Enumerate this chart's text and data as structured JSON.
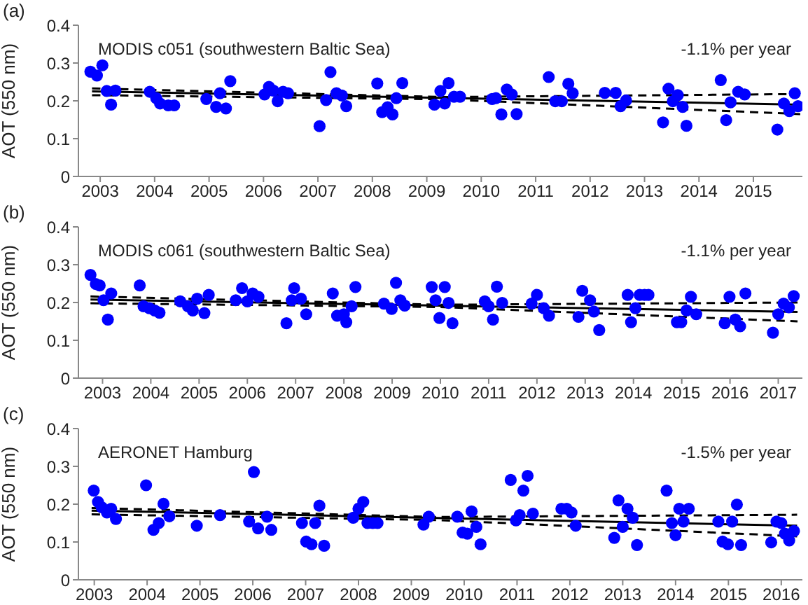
{
  "chart_data": [
    {
      "type": "scatter",
      "title": "(a)",
      "ylabel": "AOT (550 nm)",
      "annotations": [
        "MODIS c051 (southwestern Baltic Sea)",
        "-1.1% per year"
      ],
      "xlim": [
        2002.6,
        2015.9
      ],
      "xticks": [
        2003,
        2004,
        2005,
        2006,
        2007,
        2008,
        2009,
        2010,
        2011,
        2012,
        2013,
        2014,
        2015
      ],
      "ylim": [
        0,
        0.4
      ],
      "yticks": [
        0,
        0.1,
        0.2,
        0.3,
        0.4
      ],
      "grid": false,
      "legend": false,
      "marker": "circle",
      "series": [
        {
          "color": "#0000ff",
          "x": [
            2002.82,
            2002.94,
            2003.04,
            2003.12,
            2003.2,
            2003.28,
            2003.91,
            2004.03,
            2004.1,
            2004.25,
            2004.36,
            2004.95,
            2005.13,
            2005.2,
            2005.31,
            2005.39,
            2006.02,
            2006.1,
            2006.18,
            2006.26,
            2006.36,
            2006.45,
            2007.03,
            2007.15,
            2007.23,
            2007.34,
            2007.44,
            2007.52,
            2008.09,
            2008.18,
            2008.28,
            2008.37,
            2008.44,
            2008.55,
            2009.14,
            2009.25,
            2009.33,
            2009.4,
            2009.5,
            2009.61,
            2010.2,
            2010.27,
            2010.37,
            2010.47,
            2010.56,
            2010.65,
            2011.24,
            2011.36,
            2011.48,
            2011.6,
            2011.68,
            2012.27,
            2012.47,
            2012.56,
            2012.66,
            2013.34,
            2013.44,
            2013.52,
            2013.61,
            2013.7,
            2013.77,
            2014.4,
            2014.5,
            2014.58,
            2014.72,
            2014.84,
            2015.44,
            2015.56,
            2015.66,
            2015.76,
            2015.82
          ],
          "values": [
            0.277,
            0.267,
            0.294,
            0.226,
            0.19,
            0.227,
            0.224,
            0.207,
            0.193,
            0.188,
            0.188,
            0.205,
            0.184,
            0.22,
            0.18,
            0.252,
            0.217,
            0.237,
            0.227,
            0.199,
            0.224,
            0.22,
            0.133,
            0.202,
            0.276,
            0.22,
            0.214,
            0.186,
            0.246,
            0.17,
            0.183,
            0.164,
            0.207,
            0.247,
            0.19,
            0.226,
            0.193,
            0.247,
            0.211,
            0.211,
            0.205,
            0.207,
            0.164,
            0.23,
            0.217,
            0.165,
            0.263,
            0.199,
            0.199,
            0.245,
            0.22,
            0.221,
            0.221,
            0.186,
            0.201,
            0.143,
            0.232,
            0.199,
            0.215,
            0.184,
            0.134,
            0.255,
            0.149,
            0.196,
            0.224,
            0.217,
            0.124,
            0.193,
            0.173,
            0.22,
            0.186
          ]
        },
        {
          "type": "line",
          "color": "#000000",
          "line_style": "solid",
          "marker": "none",
          "x": [
            2002.85,
            2015.86
          ],
          "values": [
            0.225,
            0.19
          ]
        },
        {
          "type": "line",
          "color": "#000000",
          "line_style": "dashed",
          "marker": "none",
          "x": [
            2002.85,
            2009.3,
            2015.86
          ],
          "values": [
            0.233,
            0.21,
            0.218
          ]
        },
        {
          "type": "line",
          "color": "#000000",
          "line_style": "dashed",
          "marker": "none",
          "x": [
            2002.85,
            2009.3,
            2015.86
          ],
          "values": [
            0.215,
            0.204,
            0.165
          ]
        }
      ]
    },
    {
      "type": "scatter",
      "title": "(b)",
      "ylabel": "AOT (550 nm)",
      "annotations": [
        "MODIS c061 (southwestern Baltic Sea)",
        "-1.1% per year"
      ],
      "xlim": [
        2002.5,
        2017.5
      ],
      "xticks": [
        2003,
        2004,
        2005,
        2006,
        2007,
        2008,
        2009,
        2010,
        2011,
        2012,
        2013,
        2014,
        2015,
        2016,
        2017
      ],
      "ylim": [
        0,
        0.4
      ],
      "yticks": [
        0,
        0.1,
        0.2,
        0.3,
        0.4
      ],
      "grid": false,
      "legend": false,
      "marker": "circle",
      "series": [
        {
          "color": "#0000ff",
          "x": [
            2002.75,
            2002.86,
            2002.94,
            2003.02,
            2003.11,
            2003.18,
            2003.77,
            2003.85,
            2003.97,
            2004.08,
            2004.18,
            2004.61,
            2004.77,
            2004.87,
            2004.96,
            2005.11,
            2005.2,
            2005.76,
            2005.89,
            2006.0,
            2006.11,
            2006.23,
            2006.81,
            2006.92,
            2006.97,
            2007.11,
            2007.22,
            2007.77,
            2007.86,
            2008.0,
            2008.05,
            2008.16,
            2008.24,
            2008.83,
            2008.99,
            2009.08,
            2009.17,
            2009.26,
            2009.82,
            2009.9,
            2009.98,
            2010.09,
            2010.17,
            2010.25,
            2010.92,
            2011.0,
            2011.09,
            2011.17,
            2011.28,
            2011.89,
            2012.0,
            2012.14,
            2012.25,
            2012.86,
            2012.94,
            2013.1,
            2013.18,
            2013.29,
            2013.88,
            2013.95,
            2014.04,
            2014.13,
            2014.23,
            2014.31,
            2014.9,
            2014.99,
            2015.1,
            2015.19,
            2015.3,
            2015.89,
            2015.99,
            2016.11,
            2016.21,
            2016.32,
            2016.89,
            2017.0,
            2017.11,
            2017.22,
            2017.32
          ],
          "values": [
            0.273,
            0.249,
            0.245,
            0.206,
            0.155,
            0.224,
            0.245,
            0.19,
            0.185,
            0.179,
            0.173,
            0.203,
            0.19,
            0.179,
            0.21,
            0.172,
            0.22,
            0.206,
            0.238,
            0.203,
            0.224,
            0.215,
            0.145,
            0.206,
            0.238,
            0.21,
            0.169,
            0.224,
            0.165,
            0.169,
            0.148,
            0.19,
            0.241,
            0.197,
            0.183,
            0.252,
            0.206,
            0.192,
            0.241,
            0.206,
            0.159,
            0.241,
            0.199,
            0.145,
            0.203,
            0.19,
            0.155,
            0.242,
            0.199,
            0.197,
            0.22,
            0.185,
            0.165,
            0.162,
            0.231,
            0.206,
            0.176,
            0.127,
            0.22,
            0.148,
            0.185,
            0.22,
            0.22,
            0.22,
            0.148,
            0.148,
            0.179,
            0.215,
            0.169,
            0.145,
            0.215,
            0.155,
            0.137,
            0.224,
            0.12,
            0.169,
            0.197,
            0.187,
            0.217
          ]
        },
        {
          "type": "line",
          "color": "#000000",
          "line_style": "solid",
          "marker": "none",
          "x": [
            2002.75,
            2017.4
          ],
          "values": [
            0.208,
            0.175
          ]
        },
        {
          "type": "line",
          "color": "#000000",
          "line_style": "dashed",
          "marker": "none",
          "x": [
            2002.75,
            2010,
            2017.4
          ],
          "values": [
            0.216,
            0.194,
            0.2
          ]
        },
        {
          "type": "line",
          "color": "#000000",
          "line_style": "dashed",
          "marker": "none",
          "x": [
            2002.75,
            2010,
            2017.4
          ],
          "values": [
            0.198,
            0.188,
            0.15
          ]
        }
      ]
    },
    {
      "type": "scatter",
      "title": "(c)",
      "ylabel": "AOT (550 nm)",
      "annotations": [
        "AERONET Hamburg",
        "-1.5% per year"
      ],
      "xlim": [
        2002.7,
        2016.4
      ],
      "xticks": [
        2003,
        2004,
        2005,
        2006,
        2007,
        2008,
        2009,
        2010,
        2011,
        2012,
        2013,
        2014,
        2015,
        2016
      ],
      "ylim": [
        0,
        0.4
      ],
      "yticks": [
        0,
        0.1,
        0.2,
        0.3,
        0.4
      ],
      "grid": false,
      "legend": false,
      "marker": "circle",
      "series": [
        {
          "color": "#0000ff",
          "x": [
            2002.99,
            2003.07,
            2003.14,
            2003.24,
            2003.32,
            2003.41,
            2003.98,
            2004.12,
            2004.22,
            2004.31,
            2004.42,
            2004.94,
            2005.38,
            2005.93,
            2006.02,
            2006.1,
            2006.27,
            2006.35,
            2006.93,
            2007.01,
            2007.11,
            2007.18,
            2007.26,
            2007.35,
            2007.9,
            2008.0,
            2008.09,
            2008.17,
            2008.27,
            2008.36,
            2009.23,
            2009.33,
            2009.87,
            2009.97,
            2010.06,
            2010.14,
            2010.23,
            2010.31,
            2010.88,
            2010.98,
            2011.05,
            2011.12,
            2011.2,
            2011.3,
            2011.84,
            2011.94,
            2012.03,
            2012.11,
            2012.84,
            2012.92,
            2013.0,
            2013.09,
            2013.19,
            2013.27,
            2013.83,
            2013.93,
            2014.0,
            2014.07,
            2014.15,
            2014.25,
            2014.81,
            2014.89,
            2014.99,
            2015.07,
            2015.16,
            2015.24,
            2015.81,
            2015.91,
            2016.0,
            2016.07,
            2016.15,
            2016.24
          ],
          "values": [
            0.236,
            0.206,
            0.192,
            0.178,
            0.188,
            0.161,
            0.25,
            0.132,
            0.15,
            0.201,
            0.168,
            0.143,
            0.171,
            0.154,
            0.285,
            0.136,
            0.167,
            0.132,
            0.15,
            0.101,
            0.094,
            0.15,
            0.196,
            0.09,
            0.164,
            0.188,
            0.206,
            0.15,
            0.15,
            0.15,
            0.146,
            0.167,
            0.167,
            0.125,
            0.122,
            0.181,
            0.14,
            0.094,
            0.264,
            0.157,
            0.171,
            0.236,
            0.275,
            0.175,
            0.188,
            0.188,
            0.178,
            0.143,
            0.111,
            0.21,
            0.14,
            0.188,
            0.164,
            0.092,
            0.236,
            0.15,
            0.118,
            0.188,
            0.154,
            0.188,
            0.154,
            0.101,
            0.094,
            0.154,
            0.199,
            0.092,
            0.099,
            0.154,
            0.15,
            0.122,
            0.104,
            0.129
          ]
        },
        {
          "type": "line",
          "color": "#000000",
          "line_style": "solid",
          "marker": "none",
          "x": [
            2002.95,
            2016.3
          ],
          "values": [
            0.183,
            0.143
          ]
        },
        {
          "type": "line",
          "color": "#000000",
          "line_style": "dashed",
          "marker": "none",
          "x": [
            2002.95,
            2009.5,
            2016.3
          ],
          "values": [
            0.19,
            0.166,
            0.172
          ]
        },
        {
          "type": "line",
          "color": "#000000",
          "line_style": "dashed",
          "marker": "none",
          "x": [
            2002.95,
            2009.5,
            2016.3
          ],
          "values": [
            0.173,
            0.158,
            0.115
          ]
        }
      ]
    }
  ]
}
